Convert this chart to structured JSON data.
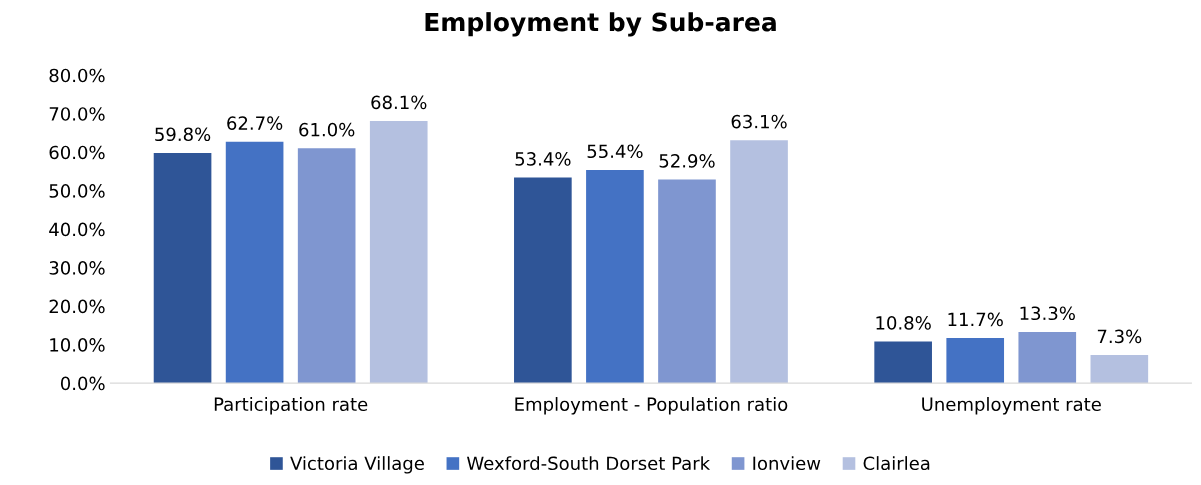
{
  "chart_data": {
    "type": "bar",
    "title": "Employment by Sub-area",
    "categories": [
      "Participation rate",
      "Employment - Population ratio",
      "Unemployment rate"
    ],
    "series": [
      {
        "name": "Victoria Village",
        "color": "#2f5597",
        "values": [
          59.8,
          53.4,
          10.8
        ],
        "value_labels": [
          "59.8%",
          "53.4%",
          "10.8%"
        ]
      },
      {
        "name": "Wexford-South Dorset Park",
        "color": "#4472c4",
        "values": [
          62.7,
          55.4,
          11.7
        ],
        "value_labels": [
          "62.7%",
          "55.4%",
          "11.7%"
        ]
      },
      {
        "name": "Ionview",
        "color": "#7f96d0",
        "values": [
          61.0,
          52.9,
          13.3
        ],
        "value_labels": [
          "61.0%",
          "52.9%",
          "13.3%"
        ]
      },
      {
        "name": "Clairlea",
        "color": "#b4c0e0",
        "values": [
          68.1,
          63.1,
          7.3
        ],
        "value_labels": [
          "68.1%",
          "63.1%",
          "7.3%"
        ]
      }
    ],
    "ylim": [
      0,
      80
    ],
    "yticks": [
      {
        "value": 0,
        "label": "0.0%"
      },
      {
        "value": 10,
        "label": "10.0%"
      },
      {
        "value": 20,
        "label": "20.0%"
      },
      {
        "value": 30,
        "label": "30.0%"
      },
      {
        "value": 40,
        "label": "40.0%"
      },
      {
        "value": 50,
        "label": "50.0%"
      },
      {
        "value": 60,
        "label": "60.0%"
      },
      {
        "value": 70,
        "label": "70.0%"
      },
      {
        "value": 80,
        "label": "80.0%"
      }
    ],
    "grid": false,
    "legend": "bottom"
  }
}
